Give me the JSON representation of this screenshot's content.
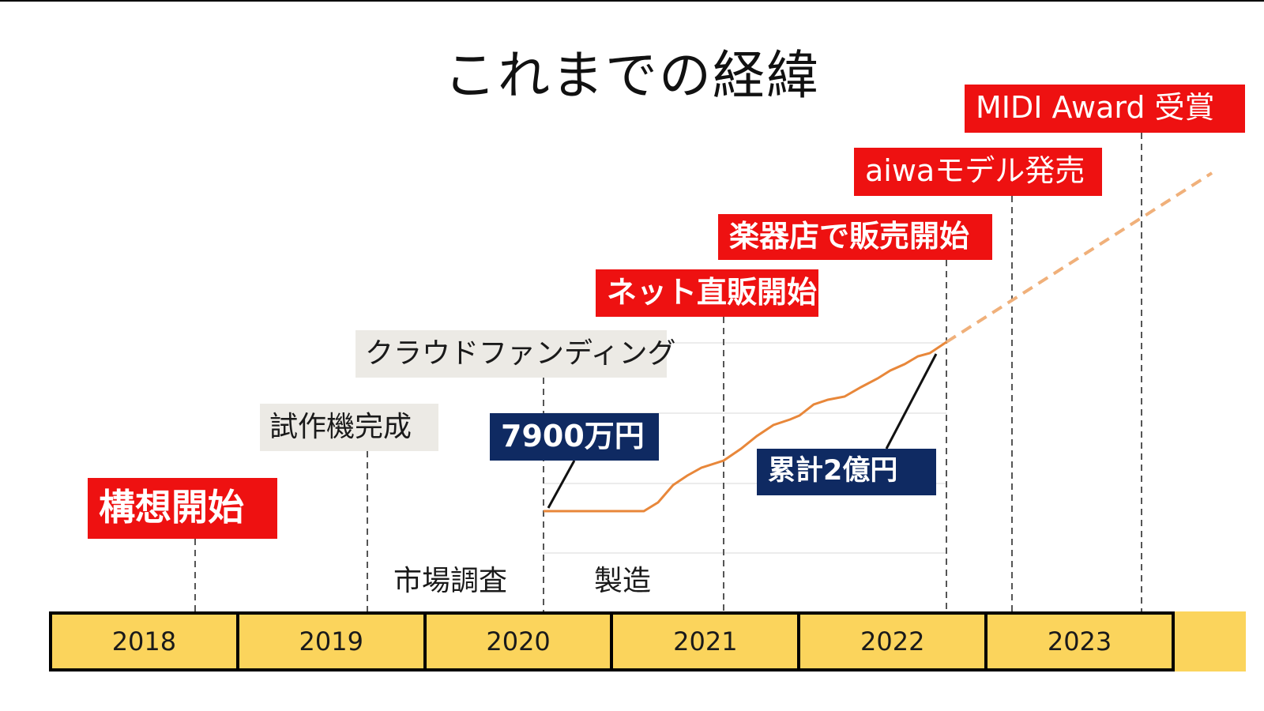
{
  "title": "これまでの経緯",
  "milestones": {
    "concept": "構想開始",
    "prototype": "試作機完成",
    "crowdfunding": "クラウドファンディング",
    "online_sales": "ネット直販開始",
    "store_sales": "楽器店で販売開始",
    "aiwa_model": "aiwaモデル発売",
    "midi_award": "MIDI Award 受賞"
  },
  "callouts": {
    "crowdfunding_amount": "7900万円",
    "cumulative_total": "累計2億円"
  },
  "phases": {
    "market_research": "市場調査",
    "manufacturing": "製造"
  },
  "timeline": {
    "years": [
      "2018",
      "2019",
      "2020",
      "2021",
      "2022",
      "2023"
    ]
  },
  "colors": {
    "milestone_red": "#ee1111",
    "callout_navy": "#0f2a62",
    "label_grey": "#eceae5",
    "timeline_yellow": "#fbd45c",
    "sales_line": "#e8873a",
    "projection_line": "#f0b07a"
  }
}
